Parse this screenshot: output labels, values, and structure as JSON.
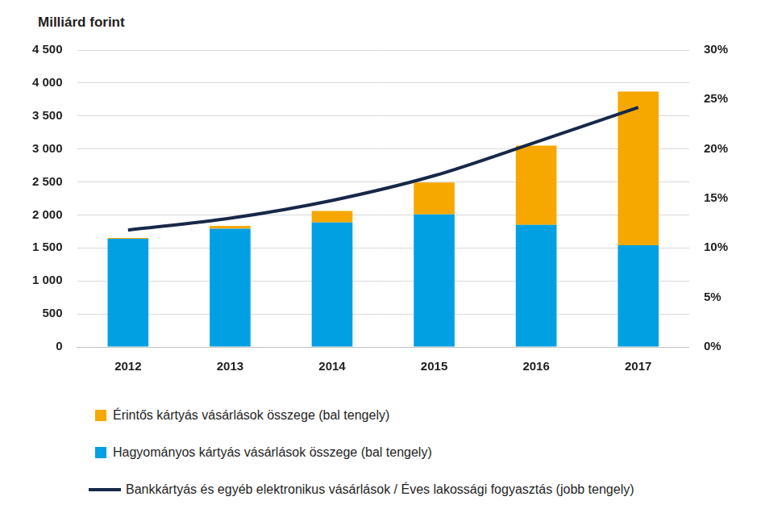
{
  "chart_data": {
    "type": "bar",
    "y_label": "Milliárd forint",
    "categories": [
      "2012",
      "2013",
      "2014",
      "2015",
      "2016",
      "2017"
    ],
    "stacked": true,
    "grid": true,
    "series": [
      {
        "name": "Hagyományos kártyás vásárlások összege (bal tengely)",
        "type": "bar",
        "color": "#00a0e3",
        "values": [
          1640,
          1790,
          1885,
          2010,
          1850,
          1540
        ]
      },
      {
        "name": "Érintős kártyás vásárlások összege (bal tengely)",
        "type": "bar",
        "color": "#f7a800",
        "values": [
          10,
          45,
          175,
          480,
          1200,
          2330
        ]
      },
      {
        "name": "Bankkártyás és egyéb elektronikus vásárlások / Éves lakossági fogyasztás (jobb tengely)",
        "type": "line",
        "axis": "y2",
        "color": "#172848",
        "values": [
          11.8,
          13.0,
          14.8,
          17.3,
          20.7,
          24.2
        ]
      }
    ],
    "ylim": [
      0,
      4500
    ],
    "yticks": [
      0,
      500,
      {
        "value": 1000,
        "label": "1 000"
      },
      {
        "value": 1500,
        "label": "1 500"
      },
      {
        "value": 2000,
        "label": "2 000"
      },
      {
        "value": 2500,
        "label": "2 500"
      },
      {
        "value": 3000,
        "label": "3 000"
      },
      {
        "value": 3500,
        "label": "3 500"
      },
      {
        "value": 4000,
        "label": "4 000"
      },
      {
        "value": 4500,
        "label": "4 500"
      }
    ],
    "y2lim": [
      0,
      30
    ],
    "y2ticks": [
      {
        "value": 0,
        "label": "0%"
      },
      {
        "value": 5,
        "label": "5%"
      },
      {
        "value": 10,
        "label": "10%"
      },
      {
        "value": 15,
        "label": "15%"
      },
      {
        "value": 20,
        "label": "20%"
      },
      {
        "value": 25,
        "label": "25%"
      },
      {
        "value": 30,
        "label": "30%"
      }
    ]
  }
}
